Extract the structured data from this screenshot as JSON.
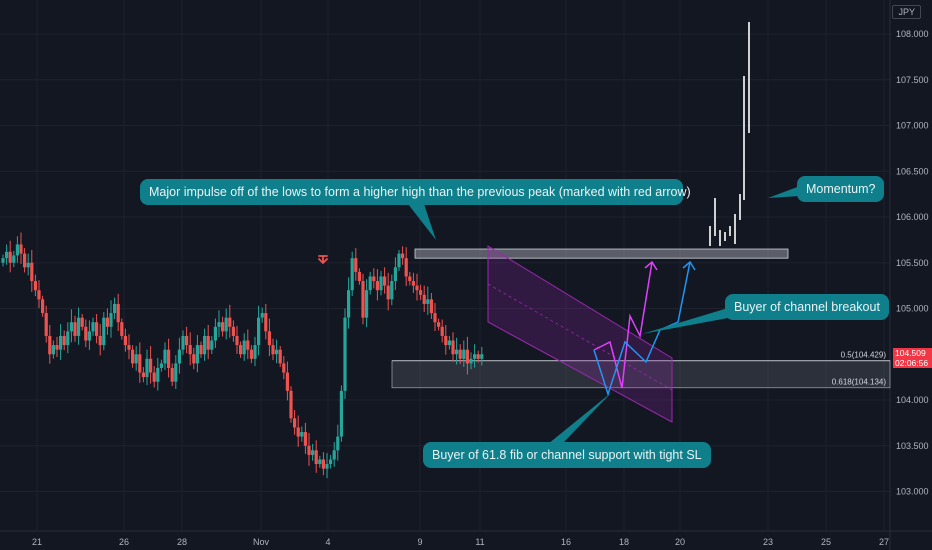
{
  "currency": "JPY",
  "colors": {
    "background": "#131722",
    "up": "#26a69a",
    "down": "#ef5350",
    "callout": "#0f7f8c",
    "channel": "#9c27b0",
    "magenta_path": "#e040fb",
    "blue_path": "#2196f3",
    "price_badge": "#f23645"
  },
  "price_badge": {
    "price": "104.509",
    "countdown": "02:06:56"
  },
  "fib_levels": [
    {
      "label": "0.5(104.429)",
      "value": 104.429
    },
    {
      "label": "0.618(104.134)",
      "value": 104.134
    }
  ],
  "callouts": {
    "impulse": "Major impulse off of the lows to form a higher high than the previous peak (marked with red arrow)",
    "momentum": "Momentum?",
    "breakout": "Buyer of channel breakout",
    "fib_buyer": "Buyer of 61.8 fib or channel support with tight SL"
  },
  "chart_data": {
    "type": "candlestick",
    "y_axis": {
      "ticks": [
        "108.000",
        "107.500",
        "107.000",
        "106.500",
        "106.000",
        "105.500",
        "105.000",
        "104.000",
        "103.500",
        "103.000"
      ],
      "tick_values": [
        108.0,
        107.5,
        107.0,
        106.5,
        106.0,
        105.5,
        105.0,
        104.0,
        103.5,
        103.0
      ],
      "range": [
        102.45,
        108.4
      ]
    },
    "x_axis": {
      "ticks": [
        "21",
        "26",
        "28",
        "Nov",
        "4",
        "9",
        "11",
        "16",
        "18",
        "20",
        "23",
        "25",
        "27"
      ]
    },
    "grid": true,
    "resistance_zone": [
      105.55,
      105.65
    ],
    "fib_zone": [
      104.134,
      104.429
    ],
    "annotations": [
      "red down arrow at previous peak",
      "descending channel",
      "projected breakout paths",
      "momentum spike"
    ],
    "current_price": 104.509
  }
}
